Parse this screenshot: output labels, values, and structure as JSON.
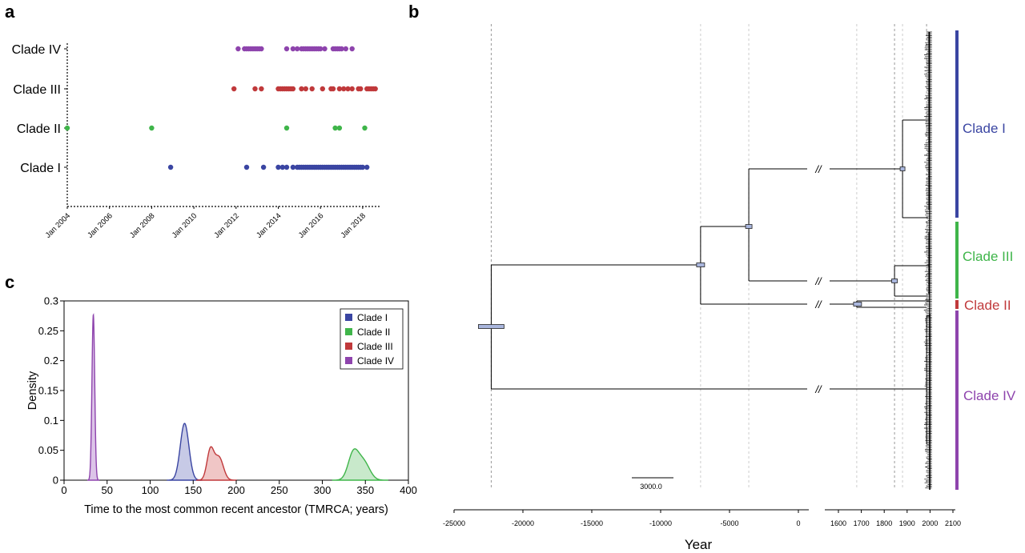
{
  "panels": {
    "a": "a",
    "b": "b",
    "c": "c"
  },
  "chart_data": [
    {
      "id": "a",
      "type": "scatter",
      "categories": [
        "Clade I",
        "Clade II",
        "Clade III",
        "Clade IV"
      ],
      "x_ticks": [
        "Jan 2004",
        "Jan 2006",
        "Jan 2008",
        "Jan 2010",
        "Jan 2012",
        "Jan 2014",
        "Jan 2016",
        "Jan 2018"
      ],
      "xlim": [
        2004.0,
        2019.0
      ],
      "grid": false,
      "series": [
        {
          "name": "Clade I",
          "color": "#3a45a2",
          "x": [
            2008.9,
            2012.5,
            2013.3,
            2014.0,
            2014.2,
            2014.4,
            2014.7,
            2014.9,
            2015.0,
            2015.1,
            2015.2,
            2015.3,
            2015.4,
            2015.5,
            2015.6,
            2015.7,
            2015.8,
            2015.9,
            2016.0,
            2016.1,
            2016.2,
            2016.3,
            2016.4,
            2016.5,
            2016.6,
            2016.7,
            2016.8,
            2016.9,
            2017.0,
            2017.1,
            2017.2,
            2017.3,
            2017.4,
            2017.5,
            2017.6,
            2017.7,
            2017.8,
            2017.9,
            2018.0,
            2018.2
          ]
        },
        {
          "name": "Clade II",
          "color": "#3fb54a",
          "x": [
            2004.0,
            2008.0,
            2014.4,
            2016.7,
            2016.9,
            2018.1
          ]
        },
        {
          "name": "Clade III",
          "color": "#c0393b",
          "x": [
            2011.9,
            2012.9,
            2013.2,
            2014.0,
            2014.1,
            2014.2,
            2014.3,
            2014.4,
            2014.5,
            2014.6,
            2014.7,
            2015.1,
            2015.3,
            2015.6,
            2016.1,
            2016.5,
            2016.6,
            2016.9,
            2017.1,
            2017.3,
            2017.5,
            2017.8,
            2017.9,
            2018.2,
            2018.3,
            2018.4,
            2018.5,
            2018.6
          ]
        },
        {
          "name": "Clade IV",
          "color": "#8e44ad",
          "x": [
            2012.1,
            2012.4,
            2012.5,
            2012.6,
            2012.7,
            2012.8,
            2012.9,
            2013.0,
            2013.1,
            2013.2,
            2014.4,
            2014.7,
            2014.9,
            2015.1,
            2015.2,
            2015.3,
            2015.4,
            2015.5,
            2015.6,
            2015.7,
            2015.8,
            2015.9,
            2016.0,
            2016.2,
            2016.6,
            2016.7,
            2016.8,
            2016.9,
            2017.0,
            2017.2,
            2017.5
          ]
        }
      ]
    },
    {
      "id": "b",
      "type": "tree",
      "xlabel": "Year",
      "left_axis_ticks": [
        -25000,
        -20000,
        -15000,
        -10000,
        -5000,
        0
      ],
      "right_axis_ticks": [
        1600,
        1700,
        1800,
        1900,
        2000,
        2100
      ],
      "scale_bar_label": "3000.0",
      "clades": [
        {
          "name": "Clade I",
          "color": "#3a45a2"
        },
        {
          "name": "Clade III",
          "color": "#3fb54a"
        },
        {
          "name": "Clade II",
          "color": "#c0393b"
        },
        {
          "name": "Clade IV",
          "color": "#8e44ad"
        }
      ],
      "break_mark": "//",
      "node_ages": {
        "root": -22300,
        "node_a": -7100,
        "node_b": -3600,
        "clade_I_mrca": 1880,
        "clade_III_mrca": 1845,
        "clade_II_mrca": 1680,
        "clade_IV_mrca": 1985
      }
    },
    {
      "id": "c",
      "type": "area",
      "xlabel": "Time to the most common recent ancestor (TMRCA; years)",
      "ylabel": "Density",
      "xlim": [
        0,
        400
      ],
      "ylim": [
        0,
        0.3
      ],
      "x_ticks": [
        0,
        50,
        100,
        150,
        200,
        250,
        300,
        350,
        400
      ],
      "y_ticks": [
        0,
        0.05,
        0.1,
        0.15,
        0.2,
        0.25,
        0.3
      ],
      "legend_position": "top-right",
      "series": [
        {
          "name": "Clade I",
          "color": "#3a45a2",
          "fill": "#c7cae6",
          "peaks": [
            {
              "mu": 140,
              "sigma": 5,
              "amp": 0.095
            }
          ]
        },
        {
          "name": "Clade II",
          "color": "#3fb54a",
          "fill": "#c8e9cb",
          "peaks": [
            {
              "mu": 336,
              "sigma": 6,
              "amp": 0.044
            },
            {
              "mu": 348,
              "sigma": 7,
              "amp": 0.03
            }
          ]
        },
        {
          "name": "Clade III",
          "color": "#c0393b",
          "fill": "#f0c6c6",
          "peaks": [
            {
              "mu": 170,
              "sigma": 4,
              "amp": 0.05
            },
            {
              "mu": 180,
              "sigma": 5,
              "amp": 0.038
            }
          ]
        },
        {
          "name": "Clade IV",
          "color": "#8e44ad",
          "fill": "#dcc4e8",
          "peaks": [
            {
              "mu": 34,
              "sigma": 1.6,
              "amp": 0.277
            }
          ]
        }
      ]
    }
  ]
}
